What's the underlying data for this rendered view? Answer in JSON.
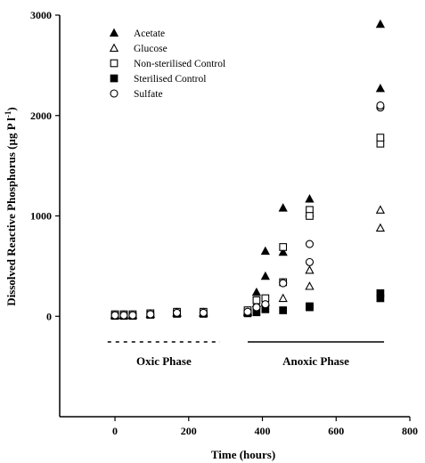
{
  "chart_data": {
    "type": "scatter",
    "xlabel": "Time (hours)",
    "ylabel_main": "Dissolved Reactive Phosphorus (µg P l",
    "ylabel_sup": "-1",
    "ylabel_close": ")",
    "xlim": [
      -150,
      800
    ],
    "ylim": [
      -1000,
      3000
    ],
    "xticks": [
      0,
      200,
      400,
      600,
      800
    ],
    "yticks": [
      0,
      1000,
      2000,
      3000
    ],
    "grid": false,
    "legend_position": "top-left",
    "phases": [
      {
        "label": "Oxic Phase",
        "x_range": [
          -20,
          285
        ],
        "style": "dashed"
      },
      {
        "label": "Anoxic Phase",
        "x_range": [
          360,
          730
        ],
        "style": "solid"
      }
    ],
    "series": [
      {
        "name": "Acetate",
        "marker": "triangle-filled",
        "points": [
          [
            0,
            15
          ],
          [
            24,
            15
          ],
          [
            48,
            15
          ],
          [
            96,
            25
          ],
          [
            168,
            40
          ],
          [
            240,
            40
          ],
          [
            360,
            50
          ],
          [
            384,
            240
          ],
          [
            408,
            400
          ],
          [
            408,
            650
          ],
          [
            456,
            640
          ],
          [
            456,
            1080
          ],
          [
            528,
            1170
          ],
          [
            528,
            1030
          ],
          [
            720,
            2270
          ],
          [
            720,
            2910
          ]
        ]
      },
      {
        "name": "Glucose",
        "marker": "triangle-open",
        "points": [
          [
            0,
            10
          ],
          [
            24,
            10
          ],
          [
            48,
            10
          ],
          [
            96,
            20
          ],
          [
            168,
            30
          ],
          [
            240,
            30
          ],
          [
            360,
            40
          ],
          [
            384,
            130
          ],
          [
            408,
            140
          ],
          [
            456,
            180
          ],
          [
            528,
            300
          ],
          [
            528,
            460
          ],
          [
            720,
            880
          ],
          [
            720,
            1060
          ]
        ]
      },
      {
        "name": "Non-sterilised Control",
        "marker": "square-open",
        "points": [
          [
            0,
            20
          ],
          [
            24,
            20
          ],
          [
            48,
            20
          ],
          [
            96,
            30
          ],
          [
            168,
            45
          ],
          [
            240,
            45
          ],
          [
            360,
            60
          ],
          [
            384,
            160
          ],
          [
            408,
            180
          ],
          [
            456,
            340
          ],
          [
            456,
            690
          ],
          [
            528,
            1060
          ],
          [
            528,
            1000
          ],
          [
            720,
            1720
          ],
          [
            720,
            1780
          ]
        ]
      },
      {
        "name": "Sterilised Control",
        "marker": "square-filled",
        "points": [
          [
            0,
            5
          ],
          [
            24,
            5
          ],
          [
            48,
            5
          ],
          [
            96,
            15
          ],
          [
            168,
            25
          ],
          [
            240,
            25
          ],
          [
            360,
            30
          ],
          [
            384,
            40
          ],
          [
            408,
            70
          ],
          [
            456,
            60
          ],
          [
            528,
            100
          ],
          [
            528,
            90
          ],
          [
            720,
            180
          ],
          [
            720,
            230
          ]
        ]
      },
      {
        "name": "Sulfate",
        "marker": "circle-open",
        "points": [
          [
            0,
            10
          ],
          [
            24,
            10
          ],
          [
            48,
            10
          ],
          [
            96,
            20
          ],
          [
            168,
            35
          ],
          [
            240,
            35
          ],
          [
            360,
            45
          ],
          [
            384,
            90
          ],
          [
            408,
            120
          ],
          [
            456,
            330
          ],
          [
            528,
            540
          ],
          [
            528,
            720
          ],
          [
            720,
            2080
          ],
          [
            720,
            2100
          ]
        ]
      }
    ]
  }
}
